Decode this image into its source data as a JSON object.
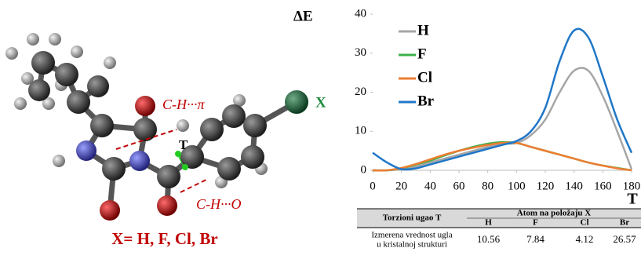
{
  "molecule": {
    "ch_pi": "C-H···π",
    "x": "X",
    "t": "T",
    "ch_o": "C-H···O",
    "caption": "X= H, F, Cl, Br"
  },
  "chart_data": {
    "type": "line",
    "ylabel": "ΔE",
    "xlabel": "T",
    "x": [
      0,
      10,
      20,
      30,
      40,
      50,
      60,
      70,
      80,
      90,
      100,
      110,
      120,
      130,
      140,
      150,
      160,
      170,
      180
    ],
    "series": [
      {
        "name": "H",
        "color": "#a6a6a6",
        "values": [
          0,
          0,
          0.3,
          1,
          2,
          3,
          4,
          5,
          6,
          6.8,
          7,
          9,
          13,
          20,
          25.5,
          25.5,
          19,
          10,
          0.3
        ]
      },
      {
        "name": "F",
        "color": "#3cb04a",
        "values": [
          0,
          0,
          0.5,
          1.5,
          2.5,
          3.8,
          5,
          6,
          6.8,
          7.2,
          7,
          6,
          5,
          4,
          3,
          2,
          1.2,
          0.6,
          0
        ]
      },
      {
        "name": "Cl",
        "color": "#ed7d31",
        "values": [
          0,
          0,
          0.6,
          1.6,
          2.8,
          4,
          5,
          5.8,
          6.5,
          7,
          7,
          6,
          5,
          4,
          3,
          2,
          1.2,
          0.5,
          0
        ]
      },
      {
        "name": "Br",
        "color": "#1f77c8",
        "values": [
          4.5,
          2,
          0.3,
          0.5,
          1.5,
          2.5,
          3.5,
          4.5,
          5.5,
          6.5,
          7.5,
          10,
          16,
          28,
          35.8,
          34,
          24,
          13,
          4.5
        ]
      }
    ],
    "xlim": [
      0,
      180
    ],
    "ylim": [
      0,
      40
    ],
    "xticks": [
      0,
      20,
      40,
      60,
      80,
      100,
      120,
      140,
      160,
      180
    ],
    "yticks": [
      0,
      10,
      20,
      30,
      40
    ],
    "legend": "upper left"
  },
  "table": {
    "header": {
      "angle": "Torzioni ugao T",
      "group": "Atom na položaju X",
      "atoms": [
        "H",
        "F",
        "Cl",
        "Br"
      ]
    },
    "rows": [
      {
        "label": [
          "Izmerena vrednost ugla",
          "u kristalnoj strukturi"
        ],
        "values": [
          10.56,
          7.84,
          4.12,
          26.57
        ]
      }
    ]
  }
}
